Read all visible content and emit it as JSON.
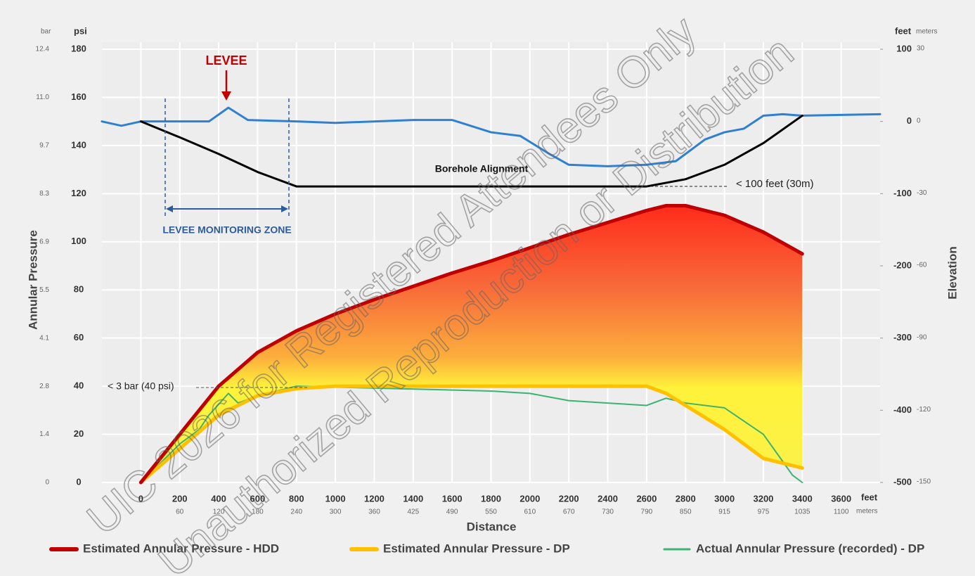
{
  "chart_data": {
    "type": "line",
    "x_label": "Distance",
    "y_label": "Annular Pressure",
    "y2_label": "Elevation",
    "x_unit": "feet",
    "x2_unit": "meters",
    "y_unit": "psi",
    "y_unit_alt": "bar",
    "y2_unit": "feet",
    "y2_unit_alt": "meters",
    "xlim": [
      -200,
      3800
    ],
    "xticks": [
      0,
      200,
      400,
      600,
      800,
      1000,
      1200,
      1400,
      1600,
      1800,
      2000,
      2200,
      2400,
      2600,
      2800,
      3000,
      3200,
      3400,
      3600
    ],
    "xticks_meters": [
      null,
      60,
      120,
      180,
      240,
      300,
      360,
      425,
      490,
      550,
      610,
      670,
      730,
      790,
      850,
      915,
      975,
      1035,
      1100
    ],
    "ylim": [
      0,
      180
    ],
    "yticks": [
      0,
      20,
      40,
      60,
      80,
      100,
      120,
      140,
      160,
      180
    ],
    "yticks_bar": [
      0,
      1.4,
      2.8,
      4.1,
      5.5,
      6.9,
      8.3,
      9.7,
      {
        "value": 11,
        "label": "11.0"
      },
      12.4
    ],
    "y2lim": [
      -500,
      100
    ],
    "y2ticks": [
      100,
      0,
      -100,
      -200,
      -300,
      -400,
      -500
    ],
    "y2ticks_meters": [
      30,
      0,
      -30,
      -60,
      -90,
      -120,
      -150
    ],
    "grid": true,
    "legend": "bottom",
    "series": [
      {
        "name": "Estimated Annular Pressure - HDD",
        "color": "#c00000",
        "x": [
          0,
          200,
          400,
          600,
          800,
          1000,
          1200,
          1400,
          1600,
          1800,
          2000,
          2200,
          2400,
          2600,
          2700,
          2800,
          3000,
          3200,
          3400
        ],
        "values": [
          0,
          20,
          40,
          54,
          63,
          70,
          76,
          81.5,
          87,
          92,
          97.5,
          103,
          108,
          113,
          115,
          115,
          111,
          104,
          95
        ]
      },
      {
        "name": "Estimated Annular Pressure - DP",
        "color": "#ffc000",
        "x": [
          0,
          200,
          400,
          600,
          800,
          1000,
          1200,
          1400,
          1600,
          1800,
          2000,
          2200,
          2400,
          2600,
          2700,
          2800,
          3000,
          3200,
          3400
        ],
        "values": [
          0,
          14,
          28,
          36,
          39,
          40,
          40,
          40,
          40,
          40,
          40,
          40,
          40,
          40,
          37,
          32,
          22,
          10,
          6
        ]
      },
      {
        "name": "Actual Annular Pressure (recorded) - DP",
        "color": "#3cb371",
        "x": [
          0,
          100,
          200,
          300,
          350,
          450,
          500,
          600,
          800,
          1800,
          2000,
          2200,
          2400,
          2600,
          2700,
          2800,
          3000,
          3200,
          3350,
          3400
        ],
        "values": [
          0,
          8,
          16,
          22,
          28,
          37,
          33,
          36,
          40,
          38,
          37,
          34,
          33,
          32,
          35,
          33,
          31,
          20,
          3,
          0
        ]
      },
      {
        "color": "#2f80d0",
        "axis": "y2",
        "x": [
          -200,
          -100,
          0,
          200,
          350,
          450,
          550,
          800,
          1000,
          1400,
          1600,
          1800,
          1950,
          2100,
          2200,
          2400,
          2600,
          2750,
          2900,
          3000,
          3100,
          3200,
          3300,
          3400,
          3800
        ],
        "values": [
          0,
          -6,
          0,
          0,
          0,
          19,
          2,
          0,
          -2,
          2,
          2,
          -15,
          -20,
          -45,
          -60,
          -62,
          -60,
          -55,
          -25,
          -15,
          -10,
          8,
          10,
          8,
          10
        ]
      },
      {
        "name": "Borehole Alignment",
        "color": "#000000",
        "axis": "y2",
        "x": [
          0,
          200,
          400,
          600,
          800,
          1000,
          2600,
          2800,
          3000,
          3200,
          3400
        ],
        "values": [
          0,
          -22,
          -45,
          -70,
          -90,
          -90,
          -90,
          -80,
          -60,
          -30,
          8
        ]
      }
    ],
    "annotations": [
      "LEVEE",
      "LEVEE MONITORING ZONE",
      "< 100 feet (30m)",
      "< 3 bar (40 psi)"
    ],
    "watermark": [
      "UIC 2026 for Registered Attendees Only",
      "Unauthorized Reproduction or Distribution"
    ]
  }
}
